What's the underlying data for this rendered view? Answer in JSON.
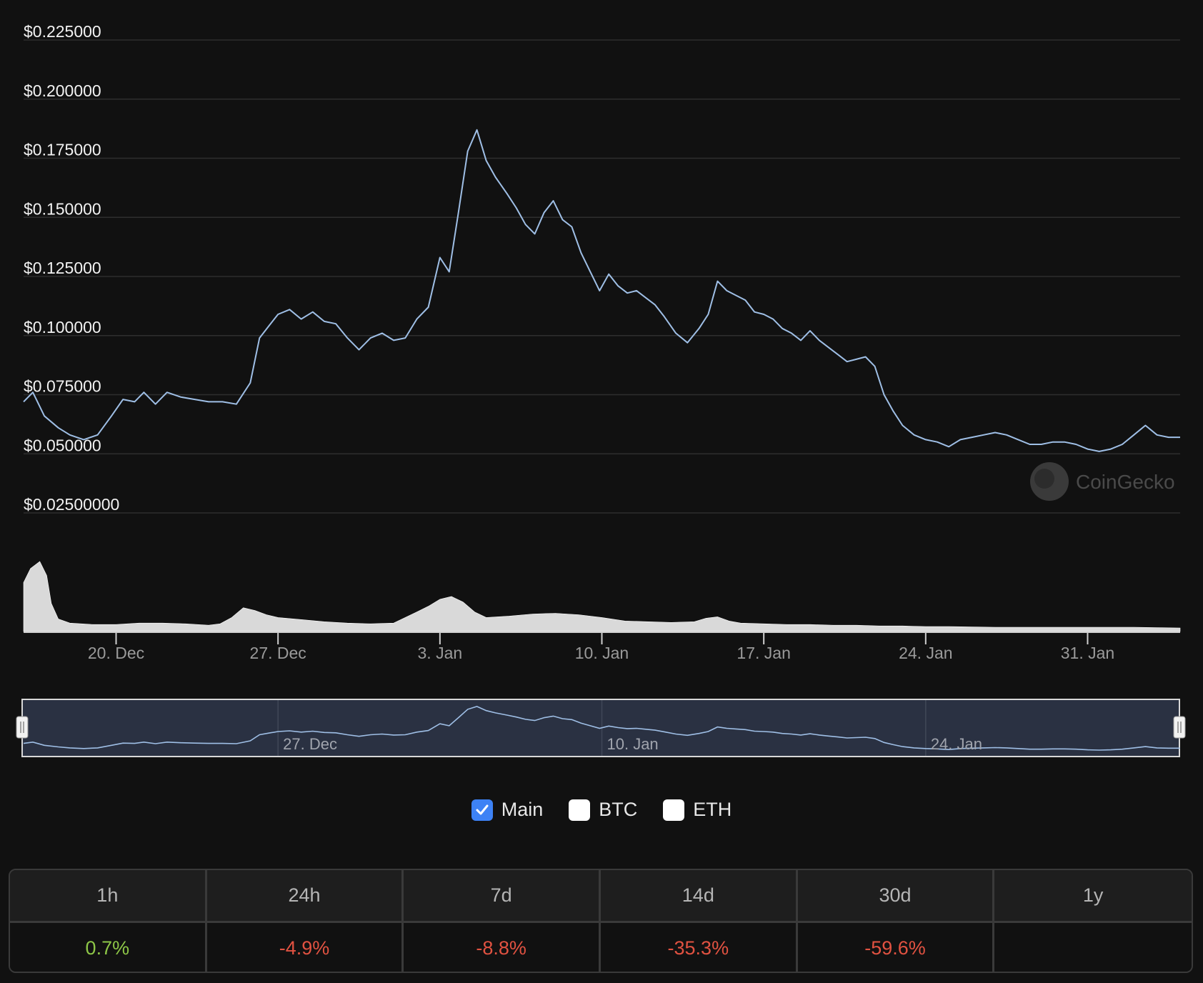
{
  "chart_data": {
    "type": "line",
    "title": "",
    "ylabel": "",
    "xlabel": "",
    "y_ticks": [
      "$0.225000",
      "$0.200000",
      "$0.175000",
      "$0.150000",
      "$0.125000",
      "$0.100000",
      "$0.075000",
      "$0.050000",
      "$0.02500000"
    ],
    "y_tick_values": [
      0.225,
      0.2,
      0.175,
      0.15,
      0.125,
      0.1,
      0.075,
      0.05,
      0.025
    ],
    "x_ticks": [
      "20. Dec",
      "27. Dec",
      "3. Jan",
      "10. Jan",
      "17. Jan",
      "24. Jan",
      "31. Jan"
    ],
    "x_tick_days": [
      4,
      11,
      18,
      25,
      32,
      39,
      46
    ],
    "xlim_days": [
      0,
      50
    ],
    "series": [
      {
        "name": "Price",
        "color": "#9fbfe6",
        "points": [
          [
            0,
            0.072
          ],
          [
            0.4,
            0.076
          ],
          [
            0.9,
            0.066
          ],
          [
            1.5,
            0.061
          ],
          [
            2.0,
            0.058
          ],
          [
            2.6,
            0.056
          ],
          [
            3.2,
            0.058
          ],
          [
            3.8,
            0.066
          ],
          [
            4.3,
            0.073
          ],
          [
            4.8,
            0.072
          ],
          [
            5.2,
            0.076
          ],
          [
            5.7,
            0.071
          ],
          [
            6.2,
            0.076
          ],
          [
            6.8,
            0.074
          ],
          [
            7.4,
            0.073
          ],
          [
            8.0,
            0.072
          ],
          [
            8.6,
            0.072
          ],
          [
            9.2,
            0.071
          ],
          [
            9.8,
            0.08
          ],
          [
            10.2,
            0.099
          ],
          [
            10.6,
            0.104
          ],
          [
            11.0,
            0.109
          ],
          [
            11.5,
            0.111
          ],
          [
            12.0,
            0.107
          ],
          [
            12.5,
            0.11
          ],
          [
            13.0,
            0.106
          ],
          [
            13.5,
            0.105
          ],
          [
            14.0,
            0.099
          ],
          [
            14.5,
            0.094
          ],
          [
            15.0,
            0.099
          ],
          [
            15.5,
            0.101
          ],
          [
            16.0,
            0.098
          ],
          [
            16.5,
            0.099
          ],
          [
            17.0,
            0.107
          ],
          [
            17.5,
            0.112
          ],
          [
            18.0,
            0.133
          ],
          [
            18.4,
            0.127
          ],
          [
            18.8,
            0.152
          ],
          [
            19.2,
            0.178
          ],
          [
            19.6,
            0.187
          ],
          [
            20.0,
            0.174
          ],
          [
            20.4,
            0.167
          ],
          [
            20.9,
            0.16
          ],
          [
            21.3,
            0.154
          ],
          [
            21.7,
            0.147
          ],
          [
            22.1,
            0.143
          ],
          [
            22.5,
            0.152
          ],
          [
            22.9,
            0.157
          ],
          [
            23.3,
            0.149
          ],
          [
            23.7,
            0.146
          ],
          [
            24.1,
            0.135
          ],
          [
            24.5,
            0.127
          ],
          [
            24.9,
            0.119
          ],
          [
            25.3,
            0.126
          ],
          [
            25.7,
            0.121
          ],
          [
            26.1,
            0.118
          ],
          [
            26.5,
            0.119
          ],
          [
            26.9,
            0.116
          ],
          [
            27.3,
            0.113
          ],
          [
            27.7,
            0.108
          ],
          [
            28.2,
            0.101
          ],
          [
            28.7,
            0.097
          ],
          [
            29.2,
            0.103
          ],
          [
            29.6,
            0.109
          ],
          [
            30.0,
            0.123
          ],
          [
            30.4,
            0.119
          ],
          [
            30.8,
            0.117
          ],
          [
            31.2,
            0.115
          ],
          [
            31.6,
            0.11
          ],
          [
            32.0,
            0.109
          ],
          [
            32.4,
            0.107
          ],
          [
            32.8,
            0.103
          ],
          [
            33.2,
            0.101
          ],
          [
            33.6,
            0.098
          ],
          [
            34.0,
            0.102
          ],
          [
            34.4,
            0.098
          ],
          [
            34.8,
            0.095
          ],
          [
            35.2,
            0.092
          ],
          [
            35.6,
            0.089
          ],
          [
            36.0,
            0.09
          ],
          [
            36.4,
            0.091
          ],
          [
            36.8,
            0.087
          ],
          [
            37.2,
            0.075
          ],
          [
            37.6,
            0.068
          ],
          [
            38.0,
            0.062
          ],
          [
            38.5,
            0.058
          ],
          [
            39.0,
            0.056
          ],
          [
            39.5,
            0.055
          ],
          [
            40.0,
            0.053
          ],
          [
            40.5,
            0.056
          ],
          [
            41.0,
            0.057
          ],
          [
            41.5,
            0.058
          ],
          [
            42.0,
            0.059
          ],
          [
            42.5,
            0.058
          ],
          [
            43.0,
            0.056
          ],
          [
            43.5,
            0.054
          ],
          [
            44.0,
            0.054
          ],
          [
            44.5,
            0.055
          ],
          [
            45.0,
            0.055
          ],
          [
            45.5,
            0.054
          ],
          [
            46.0,
            0.052
          ],
          [
            46.5,
            0.051
          ],
          [
            47.0,
            0.052
          ],
          [
            47.5,
            0.054
          ],
          [
            48.0,
            0.058
          ],
          [
            48.5,
            0.062
          ],
          [
            49.0,
            0.058
          ],
          [
            49.5,
            0.057
          ],
          [
            50.0,
            0.057
          ]
        ]
      },
      {
        "name": "Volume",
        "color": "#d9d9d9",
        "points": [
          [
            0,
            0.7
          ],
          [
            0.3,
            0.9
          ],
          [
            0.7,
            1.0
          ],
          [
            1.0,
            0.8
          ],
          [
            1.2,
            0.4
          ],
          [
            1.5,
            0.18
          ],
          [
            2.0,
            0.12
          ],
          [
            3.0,
            0.1
          ],
          [
            4.0,
            0.1
          ],
          [
            5.0,
            0.12
          ],
          [
            6.0,
            0.12
          ],
          [
            7.0,
            0.11
          ],
          [
            8.0,
            0.09
          ],
          [
            8.5,
            0.11
          ],
          [
            9.0,
            0.2
          ],
          [
            9.5,
            0.34
          ],
          [
            10.0,
            0.3
          ],
          [
            10.5,
            0.24
          ],
          [
            11.0,
            0.2
          ],
          [
            12.0,
            0.17
          ],
          [
            13.0,
            0.14
          ],
          [
            14.0,
            0.12
          ],
          [
            15.0,
            0.11
          ],
          [
            16.0,
            0.12
          ],
          [
            16.5,
            0.2
          ],
          [
            17.0,
            0.28
          ],
          [
            17.5,
            0.36
          ],
          [
            18.0,
            0.46
          ],
          [
            18.5,
            0.5
          ],
          [
            19.0,
            0.42
          ],
          [
            19.5,
            0.28
          ],
          [
            20.0,
            0.2
          ],
          [
            21.0,
            0.22
          ],
          [
            22.0,
            0.25
          ],
          [
            23.0,
            0.26
          ],
          [
            24.0,
            0.24
          ],
          [
            25.0,
            0.2
          ],
          [
            26.0,
            0.15
          ],
          [
            27.0,
            0.14
          ],
          [
            28.0,
            0.13
          ],
          [
            29.0,
            0.14
          ],
          [
            29.5,
            0.19
          ],
          [
            30.0,
            0.21
          ],
          [
            30.5,
            0.15
          ],
          [
            31.0,
            0.12
          ],
          [
            32.0,
            0.11
          ],
          [
            33.0,
            0.1
          ],
          [
            34.0,
            0.1
          ],
          [
            35.0,
            0.09
          ],
          [
            36.0,
            0.09
          ],
          [
            37.0,
            0.08
          ],
          [
            38.0,
            0.08
          ],
          [
            39.0,
            0.07
          ],
          [
            40.0,
            0.07
          ],
          [
            42.0,
            0.06
          ],
          [
            44.0,
            0.06
          ],
          [
            46.0,
            0.06
          ],
          [
            48.0,
            0.06
          ],
          [
            50.0,
            0.05
          ]
        ]
      }
    ],
    "watermark": "CoinGecko",
    "navigator_ticks": [
      "27. Dec",
      "10. Jan",
      "24. Jan"
    ],
    "navigator_tick_days": [
      11,
      25,
      39
    ]
  },
  "legend": [
    {
      "label": "Main",
      "checked": true
    },
    {
      "label": "BTC",
      "checked": false
    },
    {
      "label": "ETH",
      "checked": false
    }
  ],
  "ranges": {
    "headers": [
      "1h",
      "24h",
      "7d",
      "14d",
      "30d",
      "1y"
    ],
    "values": [
      "0.7%",
      "-4.9%",
      "-8.8%",
      "-35.3%",
      "-59.6%",
      ""
    ],
    "colors": [
      "#8dc647",
      "#e15241",
      "#e15241",
      "#e15241",
      "#e15241",
      "#e15241"
    ]
  }
}
